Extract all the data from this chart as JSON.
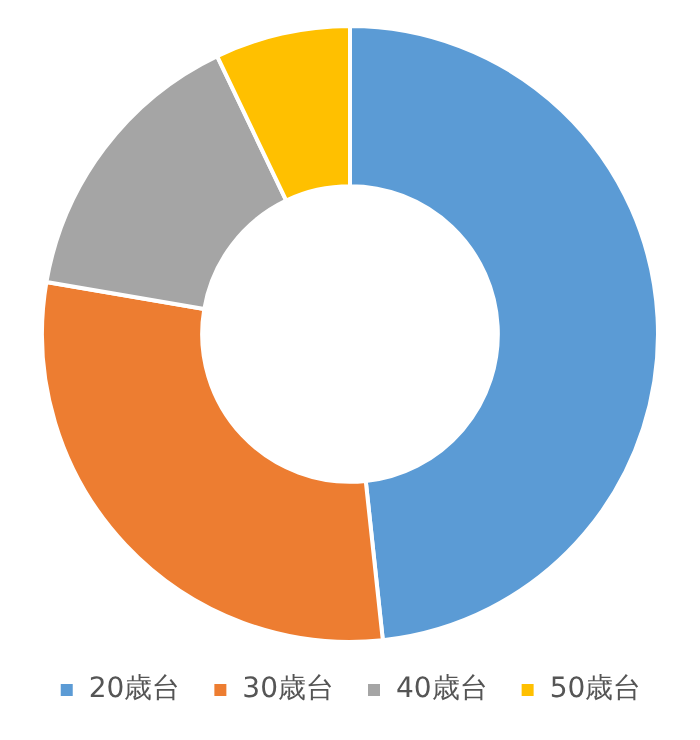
{
  "chart_data": {
    "type": "donut",
    "categories": [
      "20歳台",
      "30歳台",
      "40歳台",
      "50歳台"
    ],
    "values": [
      48.3,
      29.4,
      15.2,
      7.1
    ],
    "colors": [
      "#5b9bd5",
      "#ed7d31",
      "#a5a5a5",
      "#ffc000"
    ],
    "legend": "bottom"
  }
}
